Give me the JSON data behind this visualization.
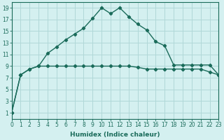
{
  "line1_x": [
    0,
    1,
    2,
    3,
    4,
    5,
    6,
    7,
    8,
    9,
    10,
    11,
    12,
    13,
    14,
    15,
    16,
    17,
    18,
    19,
    20,
    21,
    22,
    23
  ],
  "line1_y": [
    1,
    7.5,
    8.5,
    9.0,
    9.0,
    9.0,
    9.0,
    9.0,
    9.0,
    9.0,
    9.0,
    9.0,
    9.0,
    9.0,
    8.8,
    8.5,
    8.5,
    8.5,
    8.5,
    8.5,
    8.5,
    8.5,
    8.0,
    7.5
  ],
  "line2_x": [
    0,
    1,
    2,
    3,
    4,
    5,
    6,
    7,
    8,
    9,
    10,
    11,
    12,
    13,
    14,
    15,
    16,
    17,
    18,
    19,
    20,
    21,
    22,
    23
  ],
  "line2_y": [
    1,
    7.5,
    8.5,
    9.0,
    11.2,
    12.3,
    13.5,
    14.5,
    15.5,
    17.2,
    19.0,
    18.0,
    19.0,
    17.5,
    16.2,
    15.2,
    13.2,
    12.5,
    9.2,
    9.2,
    9.2,
    9.2,
    9.2,
    7.5
  ],
  "line_color": "#1a6b5a",
  "bg_color": "#d4f0f0",
  "grid_color_major": "#b0d8d8",
  "grid_color_minor": "#c8e8e8",
  "xlabel": "Humidex (Indice chaleur)",
  "xlim": [
    0,
    23
  ],
  "ylim": [
    0,
    20
  ],
  "yticks": [
    1,
    3,
    5,
    7,
    9,
    11,
    13,
    15,
    17,
    19
  ],
  "xticks": [
    0,
    1,
    2,
    3,
    4,
    5,
    6,
    7,
    8,
    9,
    10,
    11,
    12,
    13,
    14,
    15,
    16,
    17,
    18,
    19,
    20,
    21,
    22,
    23
  ],
  "marker": "D",
  "marker_size": 2.2,
  "line_width": 1.0,
  "xlabel_fontsize": 6.5,
  "tick_fontsize": 5.5
}
